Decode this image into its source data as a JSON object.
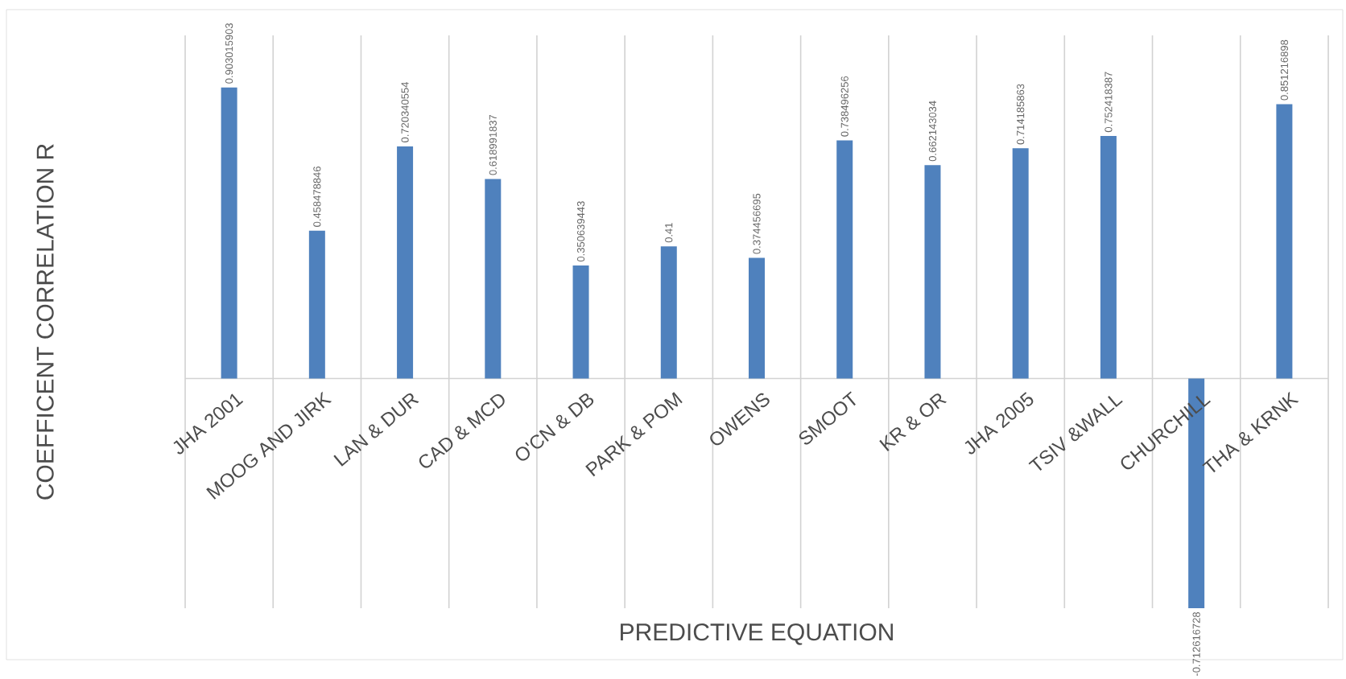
{
  "chart_data": {
    "type": "bar",
    "xlabel": "PREDICTIVE EQUATION",
    "ylabel": "COEFFICENT CORRELATION R",
    "categories": [
      "JHA 2001",
      "MOOG AND JIRK",
      "LAN & DUR",
      "CAD & MCD",
      "O'CN & DB",
      "PARK & POM",
      "OWENS",
      "SMOOT",
      "KR & OR",
      "JHA 2005",
      "TSIV &WALL",
      "CHURCHILL",
      "THA & KRNK"
    ],
    "values": [
      0.903015903,
      0.458478846,
      0.720340554,
      0.618991837,
      0.350639443,
      0.41,
      0.374456695,
      0.738496256,
      0.662143034,
      0.714185863,
      0.752418387,
      -0.712616728,
      0.851216898
    ],
    "value_labels": [
      "0.903015903",
      "0.458478846",
      "0.720340554",
      "0.618991837",
      "0.350639443",
      "0.41",
      "0.374456695",
      "0.738496256",
      "0.662143034",
      "0.714185863",
      "0.752418387",
      "-0.712616728",
      "0.851216898"
    ],
    "color": "#4f81bd",
    "grid": "x"
  }
}
